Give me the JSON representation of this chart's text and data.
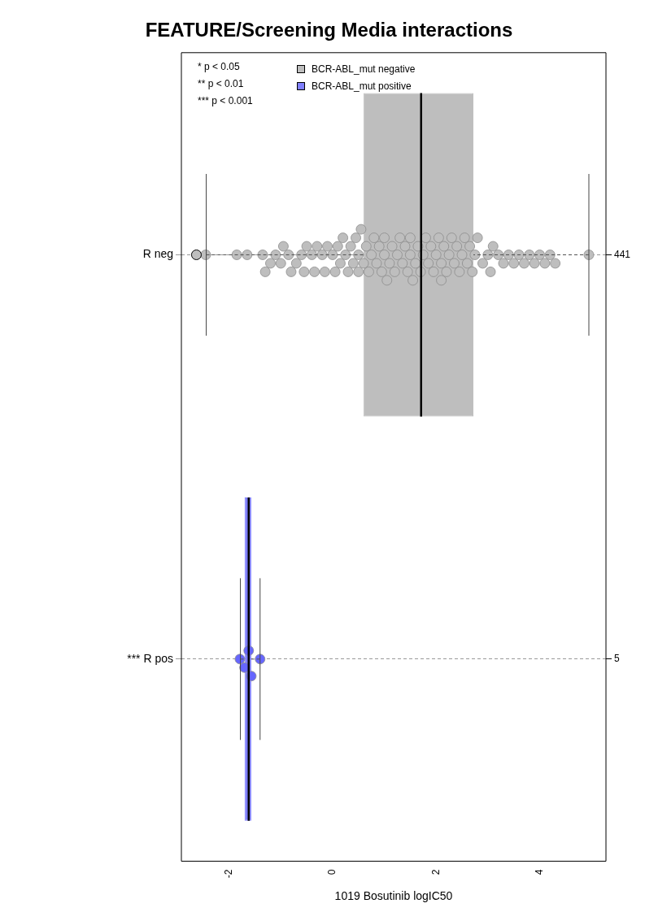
{
  "chart_data": {
    "type": "box",
    "title": "FEATURE/Screening Media interactions",
    "xlabel": "1019 Bosutinib logIC50",
    "orientation": "horizontal",
    "categories": [
      "R neg",
      "*** R pos"
    ],
    "y2_categories": [
      "441",
      "5"
    ],
    "xlim": [
      -2.92,
      5.28
    ],
    "xticks": [
      -2,
      0,
      2,
      4
    ],
    "grid": "y",
    "legend": "top left",
    "annotations": [
      "* p < 0.05",
      "** p < 0.01",
      "*** p < 0.001"
    ],
    "series": [
      {
        "name": "BCR-ABL_mut negative",
        "color": "#bebebe",
        "boxes": [
          {
            "low": -2.44,
            "q1": 0.6,
            "median": 1.71,
            "q3": 2.72,
            "high": 4.95,
            "outliers": [
              -2.63
            ]
          },
          null
        ]
      },
      {
        "name": "BCR-ABL_mut positive",
        "color": "#8080ff",
        "boxes": [
          null,
          {
            "low": -1.78,
            "q1": -1.7,
            "median": -1.62,
            "q3": -1.57,
            "high": -1.4
          }
        ]
      },
      {
        "type": "scatter",
        "color": "#bebebe",
        "x": [
          "R neg",
          "R neg",
          "R neg",
          "R neg",
          "R neg",
          "R neg",
          "R neg",
          "R neg",
          "R neg",
          "R neg",
          "R neg",
          "R neg",
          "R neg",
          "R neg",
          "R neg",
          "R neg",
          "R neg",
          "R neg",
          "R neg",
          "R neg",
          "R neg",
          "R neg",
          "R neg",
          "R neg",
          "R neg",
          "R neg",
          "R neg",
          "R neg",
          "R neg",
          "R neg",
          "R neg",
          "R neg",
          "R neg",
          "R neg",
          "R neg",
          "R neg",
          "R neg",
          "R neg",
          "R neg",
          "R neg",
          "R neg",
          "R neg",
          "R neg",
          "R neg",
          "R neg",
          "R neg",
          "R neg",
          "R neg",
          "R neg",
          "R neg",
          "R neg",
          "R neg",
          "R neg",
          "R neg",
          "R neg",
          "R neg",
          "R neg",
          "R neg",
          "R neg",
          "R neg",
          "R neg",
          "R neg",
          "R neg",
          "R neg",
          "R neg",
          "R neg",
          "R neg",
          "R neg",
          "R neg",
          "R neg",
          "R neg",
          "R neg",
          "R neg",
          "R neg",
          "R neg",
          "R neg",
          "R neg",
          "R neg",
          "R neg",
          "R neg",
          "R neg",
          "R neg",
          "R neg",
          "R neg",
          "R neg",
          "R neg",
          "R neg",
          "R neg",
          "R neg",
          "R neg",
          "R neg",
          "R neg",
          "R neg",
          "R neg",
          "R neg",
          "R neg",
          "R neg",
          "R neg",
          "R neg"
        ],
        "values": [
          -2.45,
          -1.85,
          -1.65,
          -1.35,
          -1.3,
          -1.2,
          -1.1,
          -1.0,
          -0.95,
          -0.85,
          -0.8,
          -0.7,
          -0.6,
          -0.55,
          -0.5,
          -0.4,
          -0.35,
          -0.3,
          -0.2,
          -0.15,
          -0.1,
          0,
          0.05,
          0.1,
          0.15,
          0.2,
          0.25,
          0.3,
          0.35,
          0.4,
          0.45,
          0.5,
          0.5,
          0.55,
          0.6,
          0.65,
          0.7,
          0.75,
          0.8,
          0.85,
          0.9,
          0.95,
          1.0,
          1.0,
          1.05,
          1.1,
          1.15,
          1.2,
          1.25,
          1.3,
          1.35,
          1.4,
          1.45,
          1.5,
          1.5,
          1.55,
          1.6,
          1.65,
          1.7,
          1.75,
          1.8,
          1.85,
          1.9,
          1.95,
          2.0,
          2.05,
          2.1,
          2.1,
          2.15,
          2.2,
          2.25,
          2.3,
          2.35,
          2.4,
          2.45,
          2.5,
          2.55,
          2.6,
          2.65,
          2.7,
          2.75,
          2.8,
          2.9,
          3.0,
          3.05,
          3.1,
          3.2,
          3.3,
          3.4,
          3.5,
          3.6,
          3.7,
          3.8,
          3.9,
          4.0,
          4.1,
          4.2,
          4.3,
          4.95
        ]
      },
      {
        "type": "scatter",
        "color": "#6666ff",
        "x": [
          "*** R pos",
          "*** R pos",
          "*** R pos",
          "*** R pos",
          "*** R pos"
        ],
        "values": [
          -1.79,
          -1.7,
          -1.62,
          -1.57,
          -1.4
        ]
      }
    ]
  }
}
